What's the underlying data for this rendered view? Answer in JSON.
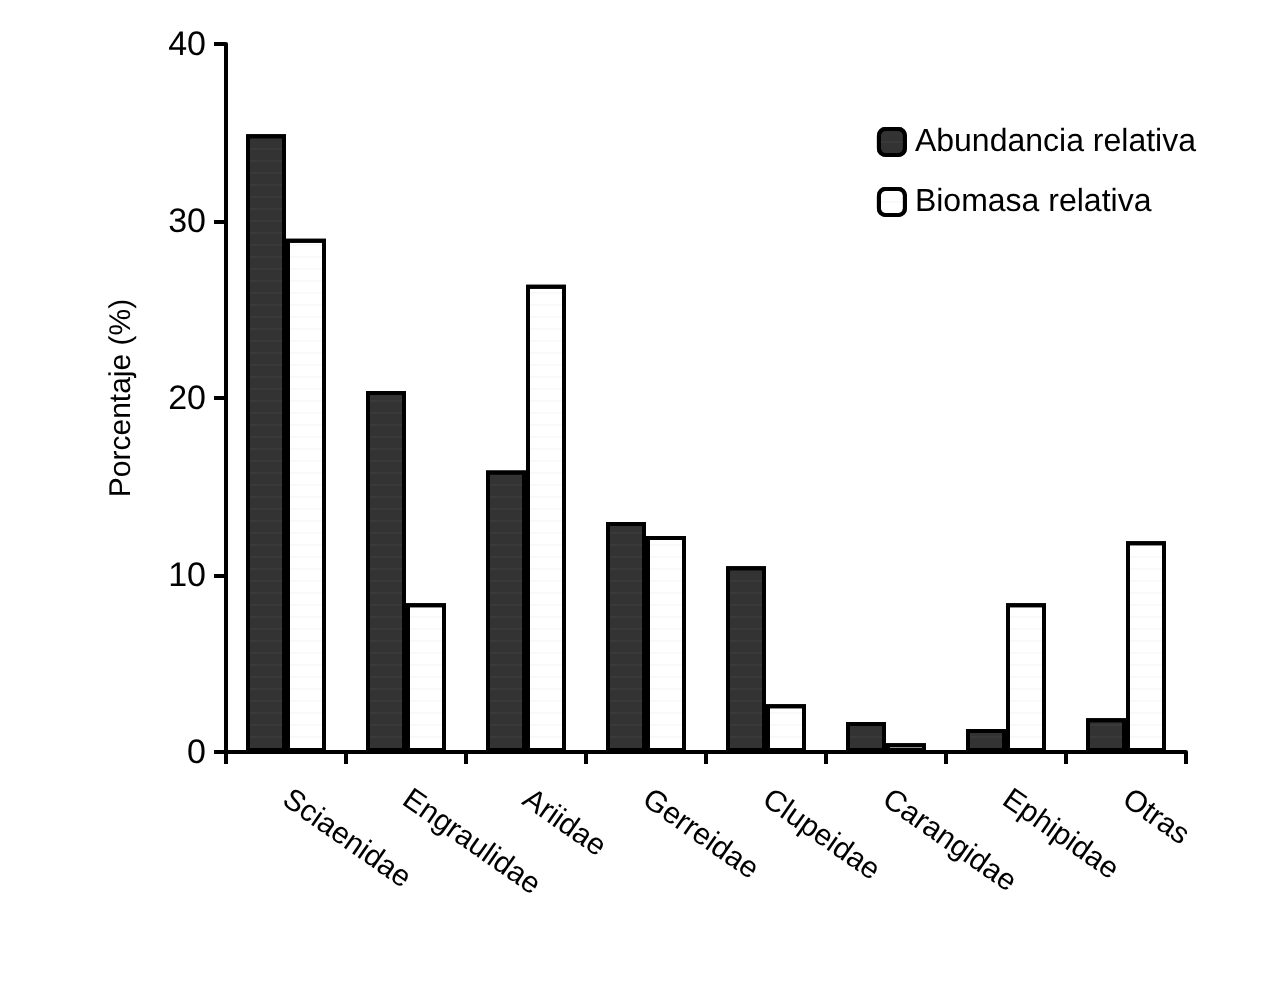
{
  "chart_data": {
    "type": "bar",
    "ylabel": "Porcentaje (%)",
    "categories": [
      "Sciaenidae",
      "Engraulidae",
      "Ariidae",
      "Gerreidae",
      "Clupeidae",
      "Carangidae",
      "Ephipidae",
      "Otras"
    ],
    "series": [
      {
        "name": "Abundancia relativa",
        "color": "#333333",
        "values": [
          34.9,
          20.4,
          15.9,
          13.0,
          10.5,
          1.7,
          1.3,
          1.9
        ]
      },
      {
        "name": "Biomasa relativa",
        "color": "#ffffff",
        "values": [
          29.0,
          8.4,
          26.4,
          12.2,
          2.7,
          0.5,
          8.4,
          11.9
        ]
      }
    ],
    "ylim": [
      0,
      40
    ],
    "yticks": [
      0,
      10,
      20,
      30,
      40
    ],
    "grid": false,
    "legend": "top right"
  }
}
